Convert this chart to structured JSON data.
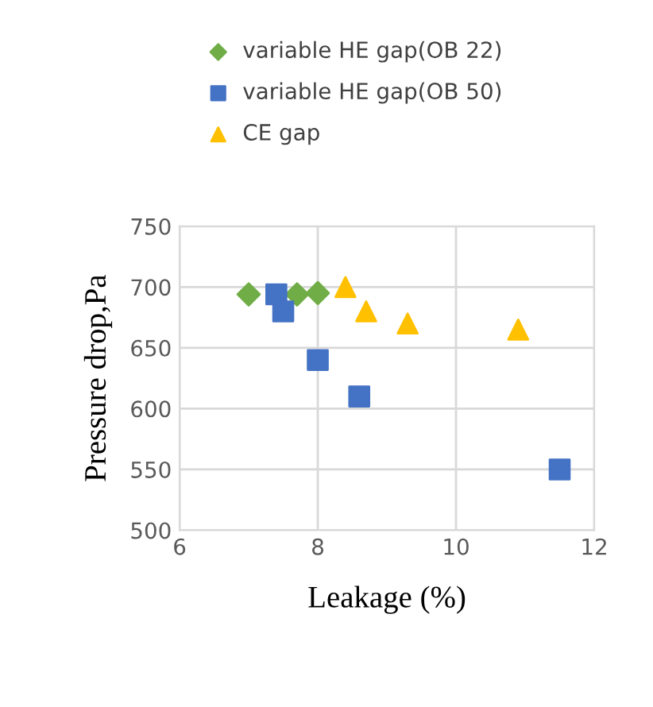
{
  "chart_data": {
    "type": "scatter",
    "xlabel": "Leakage (%)",
    "ylabel": "Pressure drop,Pa",
    "xlim": [
      6,
      12
    ],
    "xticks": [
      6,
      8,
      10,
      12
    ],
    "ylim": [
      500,
      750
    ],
    "yticks": [
      500,
      550,
      600,
      650,
      700,
      750
    ],
    "grid": true,
    "legend": "top left",
    "series": [
      {
        "name": "variable HE gap(OB 22)",
        "color": "#70ad47",
        "marker": "diamond",
        "x": [
          7.0,
          7.7,
          8.0
        ],
        "values": [
          694,
          694,
          695
        ]
      },
      {
        "name": "variable HE gap(OB 50)",
        "color": "#4472c4",
        "marker": "square",
        "x": [
          7.4,
          7.5,
          8.0,
          8.6,
          11.5
        ],
        "values": [
          694,
          680,
          640,
          610,
          550
        ]
      },
      {
        "name": "CE gap",
        "color": "#ffc000",
        "marker": "triangle",
        "x": [
          8.4,
          8.7,
          9.3,
          10.9
        ],
        "values": [
          700,
          680,
          670,
          665
        ]
      }
    ]
  }
}
